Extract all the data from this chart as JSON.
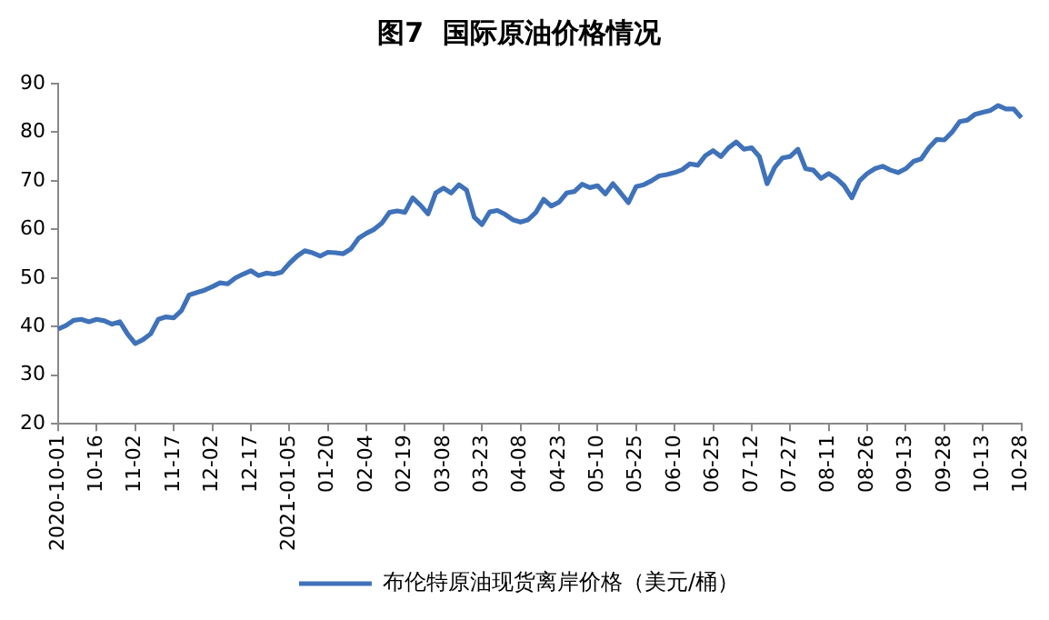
{
  "chart_data": {
    "type": "line",
    "title": "图7  国际原油价格情况",
    "categories": [
      "2020-10-01",
      null,
      null,
      null,
      null,
      "10-16",
      null,
      null,
      null,
      null,
      "11-02",
      null,
      null,
      null,
      null,
      "11-17",
      null,
      null,
      null,
      null,
      "12-02",
      null,
      null,
      null,
      null,
      "12-17",
      null,
      null,
      null,
      null,
      "2021-01-05",
      null,
      null,
      null,
      null,
      "01-20",
      null,
      null,
      null,
      null,
      "02-04",
      null,
      null,
      null,
      null,
      "02-19",
      null,
      null,
      null,
      null,
      "03-08",
      null,
      null,
      null,
      null,
      "03-23",
      null,
      null,
      null,
      null,
      "04-08",
      null,
      null,
      null,
      null,
      "04-23",
      null,
      null,
      null,
      null,
      "05-10",
      null,
      null,
      null,
      null,
      "05-25",
      null,
      null,
      null,
      null,
      "06-10",
      null,
      null,
      null,
      null,
      "06-25",
      null,
      null,
      null,
      null,
      "07-12",
      null,
      null,
      null,
      null,
      "07-27",
      null,
      null,
      null,
      null,
      "08-11",
      null,
      null,
      null,
      null,
      "08-26",
      null,
      null,
      null,
      null,
      "09-13",
      null,
      null,
      null,
      null,
      "09-28",
      null,
      null,
      null,
      null,
      "10-13",
      null,
      null,
      null,
      null,
      "10-28"
    ],
    "series": [
      {
        "name": "布伦特原油现货离岸价格（美元/桶）",
        "color": "#3f72b9",
        "values": [
          39.5,
          40.2,
          41.3,
          41.5,
          41,
          41.5,
          41.2,
          40.5,
          41,
          38.5,
          36.5,
          37.3,
          38.5,
          41.5,
          42,
          41.8,
          43.3,
          46.5,
          47,
          47.5,
          48.2,
          49,
          48.8,
          50,
          50.8,
          51.5,
          50.5,
          51,
          50.8,
          51.2,
          53,
          54.5,
          55.6,
          55.2,
          54.5,
          55.3,
          55.2,
          55,
          56,
          58.2,
          59.2,
          60,
          61.3,
          63.5,
          63.8,
          63.5,
          66.5,
          65,
          63.2,
          67.5,
          68.5,
          67.5,
          69.2,
          68.1,
          62.5,
          61,
          63.6,
          63.9,
          63.1,
          62,
          61.5,
          62,
          63.5,
          66.2,
          64.8,
          65.6,
          67.5,
          67.8,
          69.3,
          68.6,
          69,
          67.3,
          69.4,
          67.5,
          65.5,
          68.8,
          69.2,
          70,
          71,
          71.3,
          71.7,
          72.3,
          73.5,
          73.2,
          75.2,
          76.2,
          75,
          76.8,
          78,
          76.5,
          76.8,
          75,
          69.4,
          72.8,
          74.7,
          75,
          76.5,
          72.5,
          72.2,
          70.5,
          71.5,
          70.5,
          69,
          66.5,
          70,
          71.5,
          72.5,
          73,
          72.2,
          71.7,
          72.5,
          74,
          74.5,
          76.8,
          78.5,
          78.4,
          80,
          82.2,
          82.5,
          83.7,
          84.1,
          84.5,
          85.5,
          84.8,
          84.8,
          83
        ]
      }
    ],
    "ylim": [
      20,
      90
    ],
    "yticks": [
      20,
      30,
      40,
      50,
      60,
      70,
      80,
      90
    ],
    "grid": false,
    "legend": "bottom",
    "marker": "none",
    "line_style": "solid"
  }
}
